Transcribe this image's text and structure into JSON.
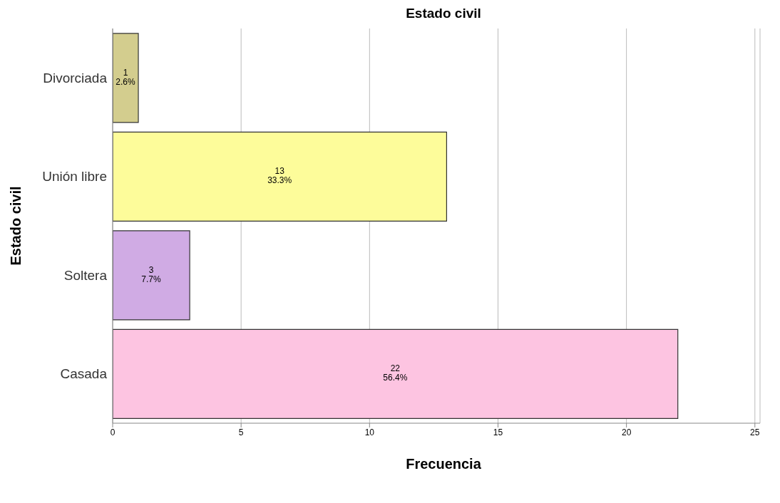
{
  "chart_data": {
    "type": "bar",
    "orientation": "horizontal",
    "title": "Estado civil",
    "xlabel": "Frecuencia",
    "ylabel": "Estado civil",
    "categories": [
      "Divorciada",
      "Unión libre",
      "Soltera",
      "Casada"
    ],
    "values": [
      1,
      13,
      3,
      22
    ],
    "colors": [
      "#d3cd8e",
      "#fdfc9a",
      "#d0abe4",
      "#fdc4e1"
    ],
    "value_labels": [
      "1\n2.6%",
      "13\n33.3%",
      "3\n7.7%",
      "22\n56.4%"
    ],
    "xlim": [
      0,
      25.2
    ],
    "xticks": [
      0,
      5,
      10,
      15,
      20,
      25
    ],
    "grid": "x"
  }
}
